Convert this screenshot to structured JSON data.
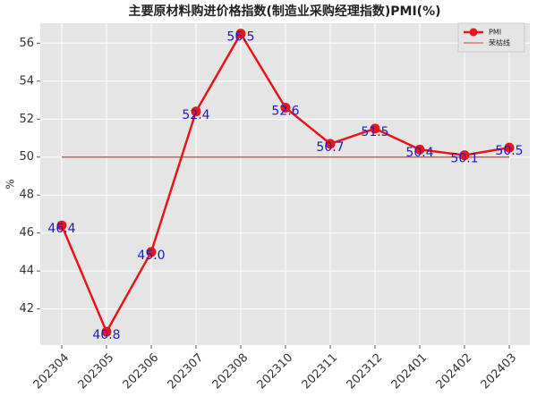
{
  "chart_data": {
    "type": "line",
    "title": "主要原材料购进价格指数(制造业采购经理指数)PMI(%)",
    "y_label": "%",
    "categories": [
      "202304",
      "202305",
      "202306",
      "202307",
      "202308",
      "202310",
      "202311",
      "202312",
      "202401",
      "202402",
      "202403"
    ],
    "series": [
      {
        "name": "PMI",
        "color": "#e8161b",
        "values": [
          46.4,
          40.8,
          45.0,
          52.4,
          56.5,
          52.6,
          50.7,
          51.5,
          50.4,
          50.1,
          50.5
        ],
        "value_labels": [
          "46.4",
          "40.8",
          "45.0",
          "52.4",
          "56.5",
          "52.6",
          "50.7",
          "51.5",
          "50.4",
          "50.1",
          "50.5"
        ],
        "label_color": "#1a1acc"
      }
    ],
    "reference_line": {
      "name": "荣枯线",
      "value": 50,
      "color": "#d9412e"
    },
    "ylim": [
      40.1,
      57.05
    ],
    "yticks": [
      42,
      44,
      46,
      48,
      50,
      52,
      54,
      56
    ],
    "grid": true,
    "legend": "upper right"
  }
}
